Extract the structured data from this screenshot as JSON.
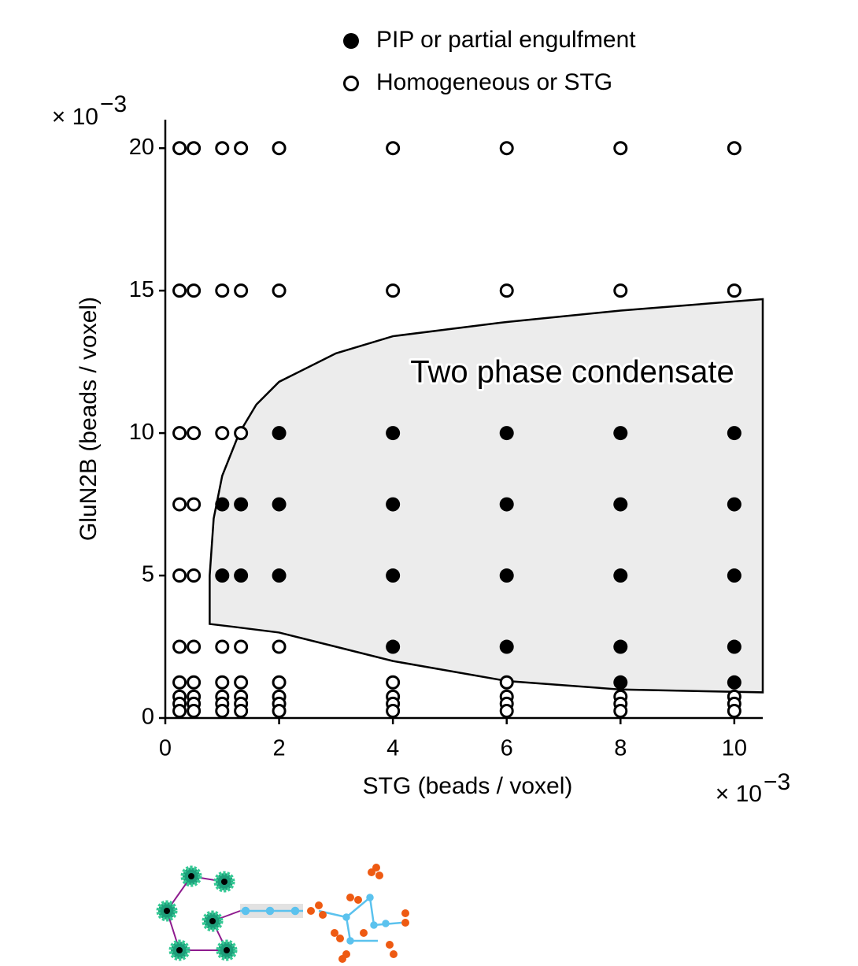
{
  "chart_data": {
    "type": "scatter",
    "xlabel": "STG (beads / voxel)",
    "ylabel": "GluN2B (beads / voxel)",
    "x_multiplier": "× 10",
    "x_exponent": "−3",
    "y_multiplier": "× 10",
    "y_exponent": "−3",
    "xlim": [
      0,
      10.5
    ],
    "ylim": [
      0,
      21
    ],
    "xticks": [
      0,
      2,
      4,
      6,
      8,
      10
    ],
    "yticks": [
      0,
      5,
      10,
      15,
      20
    ],
    "region": {
      "label": "Two phase condensate",
      "color": "#ececec",
      "x": [
        0.78,
        0.78,
        0.85,
        1.0,
        1.3,
        1.6,
        2.0,
        3.0,
        4.0,
        6.0,
        8.0,
        10.5,
        10.5,
        8.0,
        6.0,
        4.0,
        3.0,
        2.0,
        1.2
      ],
      "y": [
        3.3,
        5.0,
        7.0,
        8.5,
        10.0,
        11.0,
        11.8,
        12.8,
        13.4,
        13.9,
        14.3,
        14.7,
        0.9,
        1.0,
        1.3,
        2.0,
        2.5,
        3.0,
        3.2
      ]
    },
    "series": [
      {
        "name": "PIP or partial engulfment",
        "color": "#000000",
        "marker": "filled",
        "x": [
          2,
          4,
          6,
          8,
          10,
          1,
          1.33,
          2,
          4,
          6,
          8,
          10,
          1,
          1.33,
          2,
          4,
          6,
          8,
          10,
          4,
          6,
          8,
          10,
          8,
          10
        ],
        "y": [
          10,
          10,
          10,
          10,
          10,
          7.5,
          7.5,
          7.5,
          7.5,
          7.5,
          7.5,
          7.5,
          5,
          5,
          5,
          5,
          5,
          5,
          5,
          2.5,
          2.5,
          2.5,
          2.5,
          1.25,
          1.25
        ]
      },
      {
        "name": "Homogeneous or STG",
        "color": "#000000",
        "marker": "hollow",
        "x": [
          0.25,
          0.5,
          1,
          1.33,
          2,
          4,
          6,
          8,
          10,
          0.25,
          0.5,
          1,
          1.33,
          2,
          4,
          6,
          8,
          10,
          0.25,
          0.5,
          1,
          1.33,
          0.25,
          0.5,
          0.25,
          0.5,
          0.25,
          0.5,
          1,
          1.33,
          2,
          0.25,
          0.5,
          1,
          1.33,
          2,
          4,
          6,
          0.25,
          0.5,
          1,
          1.33,
          2,
          4,
          6,
          8,
          10,
          0.25,
          0.5,
          1,
          1.33,
          2,
          4,
          6,
          8,
          10,
          0.25,
          0.5,
          1,
          1.33,
          2,
          4,
          6,
          8,
          10
        ],
        "y": [
          20,
          20,
          20,
          20,
          20,
          20,
          20,
          20,
          20,
          15,
          15,
          15,
          15,
          15,
          15,
          15,
          15,
          15,
          10,
          10,
          10,
          10,
          7.5,
          7.5,
          5,
          5,
          2.5,
          2.5,
          2.5,
          2.5,
          2.5,
          1.25,
          1.25,
          1.25,
          1.25,
          1.25,
          1.25,
          1.25,
          0.75,
          0.75,
          0.75,
          0.75,
          0.75,
          0.75,
          0.75,
          0.75,
          0.75,
          0.5,
          0.5,
          0.5,
          0.5,
          0.5,
          0.5,
          0.5,
          0.5,
          0.5,
          0.25,
          0.25,
          0.25,
          0.25,
          0.25,
          0.25,
          0.25,
          0.25,
          0.25
        ]
      }
    ]
  }
}
